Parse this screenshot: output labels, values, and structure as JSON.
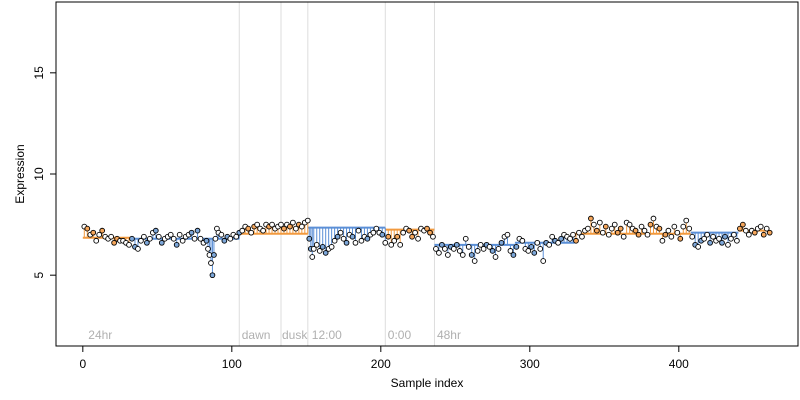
{
  "chart_data": {
    "type": "scatter",
    "xlabel": "Sample index",
    "ylabel": "Expression",
    "xlim": [
      -18,
      480
    ],
    "ylim": [
      1.5,
      18.5
    ],
    "x_ticks": [
      0,
      100,
      200,
      300,
      400
    ],
    "y_ticks": [
      5,
      10,
      15
    ],
    "grid": false,
    "colors": {
      "point_fill_default": "#000000",
      "point_fill_orange": "#f5a65b",
      "point_fill_blue": "#7da7d9",
      "segment_orange": "#f29a3f",
      "segment_blue": "#5b8fd6",
      "divider": "#dddddd",
      "region_text": "#b0b0b0"
    },
    "dividers": [
      105,
      133,
      151,
      203,
      236
    ],
    "region_labels": [
      {
        "x": 3,
        "text": "24hr"
      },
      {
        "x": 106,
        "text": "dawn"
      },
      {
        "x": 133,
        "text": "dusk"
      },
      {
        "x": 153,
        "text": "12:00"
      },
      {
        "x": 204,
        "text": "0:00"
      },
      {
        "x": 237,
        "text": "48hr"
      }
    ],
    "segments": [
      {
        "x0": 0,
        "x1": 32,
        "y": 6.85,
        "color": "orange"
      },
      {
        "x0": 32,
        "x1": 105,
        "y": 6.8,
        "color": "blue"
      },
      {
        "x0": 105,
        "x1": 151,
        "y": 7.05,
        "color": "orange"
      },
      {
        "x0": 151,
        "x1": 203,
        "y": 7.35,
        "color": "blue"
      },
      {
        "x0": 203,
        "x1": 236,
        "y": 7.25,
        "color": "orange"
      },
      {
        "x0": 236,
        "x1": 290,
        "y": 6.5,
        "color": "blue"
      },
      {
        "x0": 290,
        "x1": 330,
        "y": 6.6,
        "color": "blue"
      },
      {
        "x0": 330,
        "x1": 408,
        "y": 7.05,
        "color": "orange"
      },
      {
        "x0": 408,
        "x1": 440,
        "y": 7.1,
        "color": "blue"
      },
      {
        "x0": 440,
        "x1": 461,
        "y": 7.2,
        "color": "orange"
      }
    ],
    "series": [
      {
        "name": "",
        "points": [
          [
            1,
            7.4
          ],
          [
            3,
            7.3
          ],
          [
            5,
            7.0
          ],
          [
            7,
            7.1
          ],
          [
            9,
            6.7
          ],
          [
            11,
            7.0
          ],
          [
            13,
            7.2
          ],
          [
            15,
            6.9
          ],
          [
            17,
            6.8
          ],
          [
            19,
            6.9
          ],
          [
            21,
            6.6
          ],
          [
            23,
            6.8
          ],
          [
            25,
            6.7
          ],
          [
            27,
            6.7
          ],
          [
            29,
            6.6
          ],
          [
            31,
            6.5
          ],
          [
            33,
            6.8
          ],
          [
            35,
            6.4
          ],
          [
            37,
            6.3
          ],
          [
            39,
            6.7
          ],
          [
            41,
            6.9
          ],
          [
            43,
            6.6
          ],
          [
            45,
            6.8
          ],
          [
            47,
            7.1
          ],
          [
            49,
            7.2
          ],
          [
            51,
            6.9
          ],
          [
            53,
            6.6
          ],
          [
            55,
            6.8
          ],
          [
            57,
            6.9
          ],
          [
            59,
            7.0
          ],
          [
            61,
            6.8
          ],
          [
            63,
            6.5
          ],
          [
            65,
            7.0
          ],
          [
            67,
            6.7
          ],
          [
            69,
            6.9
          ],
          [
            71,
            7.0
          ],
          [
            73,
            7.1
          ],
          [
            75,
            6.8
          ],
          [
            77,
            7.2
          ],
          [
            79,
            6.8
          ],
          [
            81,
            6.6
          ],
          [
            83,
            6.7
          ],
          [
            84,
            6.3
          ],
          [
            85,
            6.0
          ],
          [
            86,
            5.6
          ],
          [
            87,
            5.0
          ],
          [
            88,
            6.0
          ],
          [
            89,
            6.8
          ],
          [
            90,
            7.3
          ],
          [
            91,
            7.1
          ],
          [
            93,
            7.0
          ],
          [
            95,
            6.7
          ],
          [
            97,
            6.9
          ],
          [
            99,
            6.8
          ],
          [
            101,
            7.0
          ],
          [
            103,
            6.9
          ],
          [
            105,
            7.1
          ],
          [
            107,
            7.2
          ],
          [
            109,
            7.4
          ],
          [
            111,
            7.3
          ],
          [
            113,
            7.1
          ],
          [
            115,
            7.4
          ],
          [
            117,
            7.5
          ],
          [
            119,
            7.3
          ],
          [
            121,
            7.2
          ],
          [
            123,
            7.5
          ],
          [
            125,
            7.4
          ],
          [
            127,
            7.5
          ],
          [
            129,
            7.3
          ],
          [
            131,
            7.4
          ],
          [
            133,
            7.5
          ],
          [
            135,
            7.3
          ],
          [
            137,
            7.5
          ],
          [
            139,
            7.4
          ],
          [
            141,
            7.6
          ],
          [
            143,
            7.3
          ],
          [
            145,
            7.5
          ],
          [
            147,
            7.4
          ],
          [
            149,
            7.6
          ],
          [
            151,
            7.7
          ],
          [
            152,
            6.8
          ],
          [
            153,
            6.3
          ],
          [
            154,
            5.9
          ],
          [
            155,
            6.3
          ],
          [
            157,
            6.5
          ],
          [
            159,
            6.2
          ],
          [
            161,
            6.4
          ],
          [
            163,
            6.1
          ],
          [
            165,
            6.3
          ],
          [
            167,
            6.4
          ],
          [
            169,
            6.7
          ],
          [
            171,
            6.9
          ],
          [
            173,
            7.1
          ],
          [
            175,
            6.8
          ],
          [
            177,
            6.6
          ],
          [
            179,
            7.0
          ],
          [
            181,
            6.9
          ],
          [
            183,
            6.6
          ],
          [
            185,
            7.2
          ],
          [
            187,
            6.7
          ],
          [
            189,
            6.9
          ],
          [
            191,
            6.8
          ],
          [
            193,
            7.0
          ],
          [
            195,
            7.1
          ],
          [
            197,
            7.3
          ],
          [
            199,
            7.1
          ],
          [
            201,
            7.0
          ],
          [
            203,
            6.6
          ],
          [
            205,
            6.9
          ],
          [
            207,
            6.5
          ],
          [
            209,
            6.7
          ],
          [
            211,
            6.9
          ],
          [
            213,
            6.5
          ],
          [
            215,
            7.1
          ],
          [
            217,
            7.3
          ],
          [
            219,
            7.2
          ],
          [
            221,
            6.9
          ],
          [
            223,
            7.1
          ],
          [
            225,
            6.8
          ],
          [
            227,
            7.3
          ],
          [
            229,
            7.2
          ],
          [
            231,
            7.3
          ],
          [
            233,
            7.1
          ],
          [
            235,
            6.9
          ],
          [
            237,
            6.3
          ],
          [
            239,
            6.1
          ],
          [
            241,
            6.5
          ],
          [
            243,
            6.3
          ],
          [
            245,
            6.0
          ],
          [
            247,
            6.4
          ],
          [
            249,
            6.3
          ],
          [
            251,
            6.5
          ],
          [
            253,
            6.2
          ],
          [
            255,
            6.0
          ],
          [
            257,
            6.8
          ],
          [
            259,
            6.4
          ],
          [
            261,
            6.0
          ],
          [
            263,
            5.7
          ],
          [
            265,
            6.2
          ],
          [
            267,
            6.5
          ],
          [
            269,
            6.3
          ],
          [
            271,
            6.5
          ],
          [
            273,
            6.4
          ],
          [
            275,
            6.2
          ],
          [
            277,
            5.9
          ],
          [
            279,
            6.3
          ],
          [
            281,
            6.6
          ],
          [
            283,
            6.9
          ],
          [
            285,
            7.0
          ],
          [
            287,
            6.2
          ],
          [
            289,
            6.0
          ],
          [
            291,
            6.4
          ],
          [
            293,
            6.8
          ],
          [
            295,
            6.7
          ],
          [
            297,
            6.3
          ],
          [
            299,
            6.2
          ],
          [
            301,
            6.4
          ],
          [
            303,
            6.1
          ],
          [
            305,
            6.6
          ],
          [
            307,
            6.3
          ],
          [
            309,
            5.7
          ],
          [
            311,
            6.6
          ],
          [
            313,
            6.5
          ],
          [
            315,
            6.9
          ],
          [
            317,
            6.7
          ],
          [
            319,
            6.6
          ],
          [
            321,
            6.8
          ],
          [
            323,
            7.0
          ],
          [
            325,
            6.9
          ],
          [
            327,
            6.8
          ],
          [
            329,
            7.0
          ],
          [
            331,
            6.7
          ],
          [
            333,
            7.1
          ],
          [
            335,
            6.9
          ],
          [
            337,
            7.2
          ],
          [
            339,
            7.3
          ],
          [
            341,
            7.8
          ],
          [
            343,
            7.5
          ],
          [
            345,
            7.2
          ],
          [
            347,
            7.6
          ],
          [
            349,
            7.1
          ],
          [
            351,
            7.4
          ],
          [
            353,
            7.0
          ],
          [
            355,
            7.3
          ],
          [
            357,
            7.5
          ],
          [
            359,
            7.1
          ],
          [
            361,
            7.3
          ],
          [
            363,
            6.9
          ],
          [
            365,
            7.6
          ],
          [
            367,
            7.5
          ],
          [
            369,
            7.3
          ],
          [
            371,
            7.2
          ],
          [
            373,
            7.0
          ],
          [
            375,
            7.4
          ],
          [
            377,
            7.2
          ],
          [
            379,
            7.0
          ],
          [
            381,
            7.5
          ],
          [
            383,
            7.8
          ],
          [
            385,
            7.4
          ],
          [
            387,
            7.3
          ],
          [
            389,
            6.7
          ],
          [
            391,
            7.0
          ],
          [
            393,
            7.2
          ],
          [
            395,
            6.9
          ],
          [
            397,
            7.4
          ],
          [
            399,
            7.1
          ],
          [
            401,
            6.8
          ],
          [
            403,
            7.4
          ],
          [
            405,
            7.7
          ],
          [
            407,
            7.3
          ],
          [
            409,
            6.9
          ],
          [
            411,
            6.5
          ],
          [
            413,
            6.4
          ],
          [
            415,
            6.7
          ],
          [
            417,
            6.8
          ],
          [
            419,
            7.0
          ],
          [
            421,
            6.6
          ],
          [
            423,
            6.9
          ],
          [
            425,
            6.7
          ],
          [
            427,
            6.8
          ],
          [
            429,
            6.6
          ],
          [
            431,
            6.9
          ],
          [
            433,
            6.5
          ],
          [
            435,
            6.8
          ],
          [
            437,
            7.0
          ],
          [
            439,
            6.7
          ],
          [
            441,
            7.3
          ],
          [
            443,
            7.5
          ],
          [
            445,
            7.2
          ],
          [
            447,
            7.0
          ],
          [
            449,
            7.2
          ],
          [
            451,
            7.1
          ],
          [
            453,
            7.3
          ],
          [
            455,
            7.4
          ],
          [
            457,
            7.0
          ],
          [
            459,
            7.3
          ],
          [
            461,
            7.1
          ]
        ]
      }
    ]
  }
}
